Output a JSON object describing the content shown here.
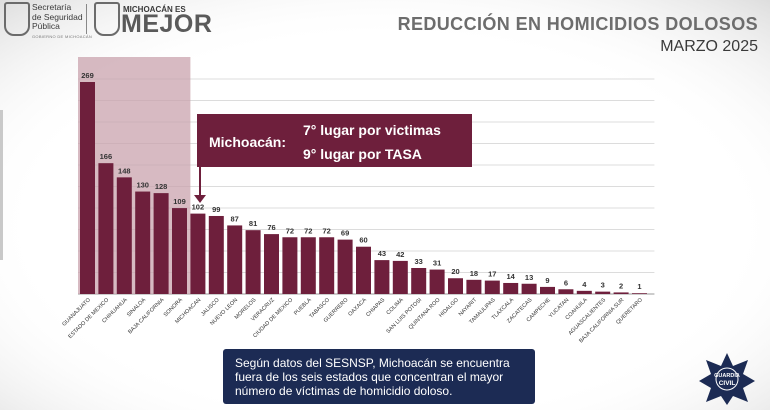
{
  "header": {
    "org_line1": "Secretaría",
    "org_line2": "de Seguridad",
    "org_line3": "Pública",
    "org_sub": "GOBIERNO DE MICHOACÁN",
    "brand_small": "MICHOACÁN ES",
    "brand_big": "MEJOR",
    "title": "REDUCCIÓN EN HOMICIDIOS DOLOSOS",
    "subtitle": "MARZO 2025"
  },
  "callout": {
    "label": "Michoacán:",
    "line1": "7° lugar por victimas",
    "line2": "9° lugar por TASA"
  },
  "note": {
    "text": "Según datos del SESNSP, Michoacán se encuentra fuera de los seis estados que concentran el mayor número de víctimas de homicidio doloso."
  },
  "badge": {
    "line1": "GUARDIA",
    "line2": "CIVIL"
  },
  "colors": {
    "bar": "#6e1f3c",
    "highlight": "#c9a3ad",
    "callout": "#6e1f3c",
    "note": "#1c2b54",
    "grid": "#dcdcdc"
  },
  "chart_data": {
    "type": "bar",
    "title": "REDUCCIÓN EN HOMICIDIOS DOLOSOS",
    "subtitle": "MARZO 2025",
    "categories": [
      "GUANAJUATO",
      "ESTADO DE MEXICO",
      "CHIHUAHUA",
      "SINALOA",
      "BAJA CALIFORNIA",
      "SONORA",
      "MICHOACAN",
      "JALISCO",
      "NUEVO LEON",
      "MORELOS",
      "VERACRUZ",
      "CIUDAD DE MEXICO",
      "PUEBLA",
      "TABASCO",
      "GUERRERO",
      "OAXACA",
      "CHIAPAS",
      "COLIMA",
      "SAN LUIS POTOSI",
      "QUINTANA ROO",
      "HIDALGO",
      "NAYARIT",
      "TAMAULIPAS",
      "TLAXCALA",
      "ZACATECAS",
      "CAMPECHE",
      "YUCATAN",
      "COAHUILA",
      "AGUASCALIENTES",
      "BAJA CALIFORNIA SUR",
      "QUERETARO"
    ],
    "values": [
      269,
      166,
      148,
      130,
      128,
      109,
      102,
      99,
      87,
      81,
      76,
      72,
      72,
      72,
      69,
      60,
      43,
      42,
      33,
      31,
      20,
      18,
      17,
      14,
      13,
      9,
      6,
      4,
      3,
      2,
      1
    ],
    "highlighted_range": [
      "GUANAJUATO",
      "SONORA"
    ],
    "ylim": [
      0,
      280
    ],
    "grid": true
  }
}
